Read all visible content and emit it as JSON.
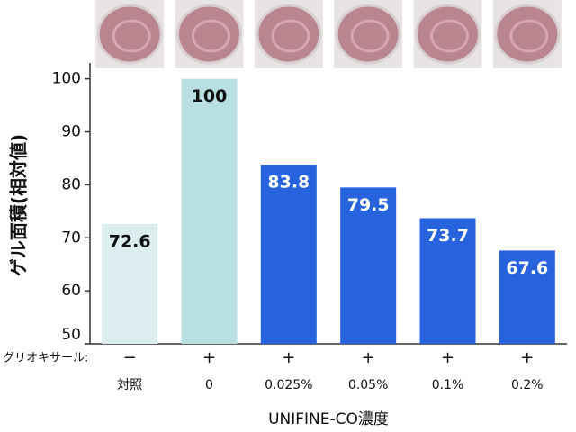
{
  "chart_data": {
    "type": "bar",
    "y_label": "ゲル面積(相対値)",
    "x_label": "UNIFINE-CO濃度",
    "row_label": "グリオキサール:",
    "row_values": [
      "−",
      "+",
      "+",
      "+",
      "+",
      "+"
    ],
    "categories": [
      "対照",
      "0",
      "0.025%",
      "0.05%",
      "0.1%",
      "0.2%"
    ],
    "values": [
      72.6,
      100,
      83.8,
      79.5,
      73.7,
      67.6
    ],
    "colors": [
      "#dcedef",
      "#b8dfe1",
      "#2763dc",
      "#2763dc",
      "#2763dc",
      "#2763dc"
    ],
    "ylim": [
      50,
      103
    ],
    "yticks": [
      50,
      60,
      70,
      80,
      90,
      100
    ]
  }
}
